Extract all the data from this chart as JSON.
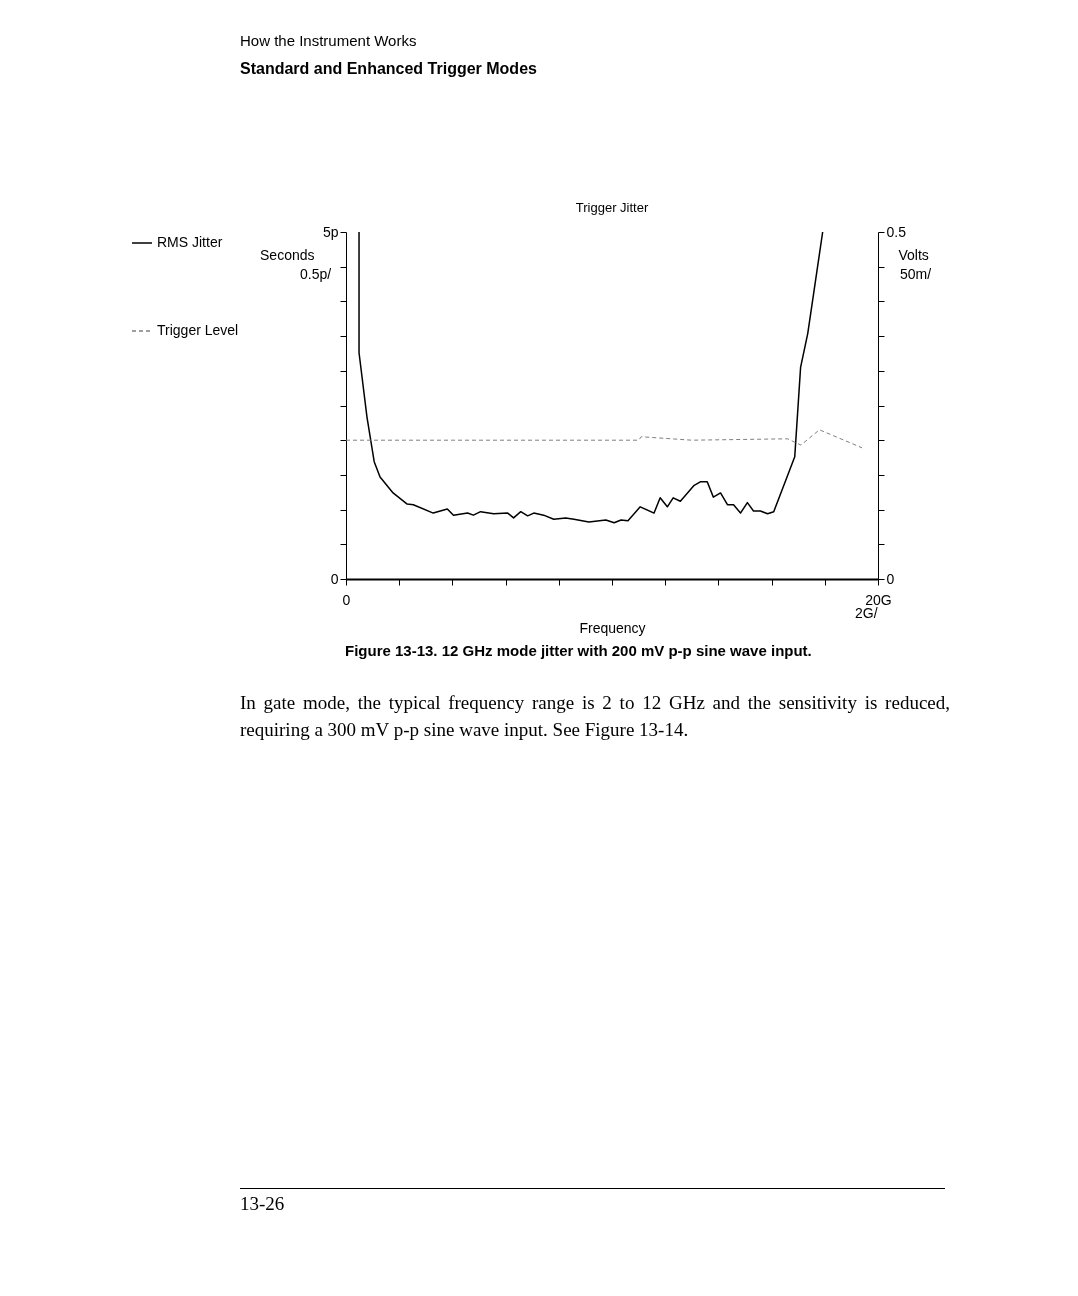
{
  "chart_data": {
    "type": "line",
    "title": "Trigger Jitter",
    "xlabel": "Frequency",
    "ylabel": "Seconds",
    "y2label": "Volts",
    "xlim": [
      0,
      20
    ],
    "xticks": [
      {
        "value": 0,
        "label": "0"
      },
      {
        "value": 2,
        "label": null
      },
      {
        "value": 4,
        "label": null
      },
      {
        "value": 6,
        "label": null
      },
      {
        "value": 8,
        "label": null
      },
      {
        "value": 10,
        "label": null
      },
      {
        "value": 12,
        "label": null
      },
      {
        "value": 14,
        "label": null
      },
      {
        "value": 16,
        "label": null
      },
      {
        "value": 18,
        "label": null
      },
      {
        "value": 20,
        "label": "20G"
      }
    ],
    "ylim": [
      0,
      5
    ],
    "yticks": [
      {
        "value": 0,
        "label": "0"
      },
      {
        "value": 0.5,
        "label": null
      },
      {
        "value": 1,
        "label": null
      },
      {
        "value": 1.5,
        "label": null
      },
      {
        "value": 2,
        "label": null
      },
      {
        "value": 2.5,
        "label": null
      },
      {
        "value": 3,
        "label": null
      },
      {
        "value": 3.5,
        "label": null
      },
      {
        "value": 4,
        "label": null
      },
      {
        "value": 4.5,
        "label": null
      },
      {
        "value": 5,
        "label": "5p"
      }
    ],
    "y2lim": [
      0,
      0.5
    ],
    "y2ticks": [
      {
        "value": 0,
        "label": "0"
      },
      {
        "value": 0.05,
        "label": null
      },
      {
        "value": 0.1,
        "label": null
      },
      {
        "value": 0.15,
        "label": null
      },
      {
        "value": 0.2,
        "label": null
      },
      {
        "value": 0.25,
        "label": null
      },
      {
        "value": 0.3,
        "label": null
      },
      {
        "value": 0.35,
        "label": null
      },
      {
        "value": 0.4,
        "label": null
      },
      {
        "value": 0.45,
        "label": null
      },
      {
        "value": 0.5,
        "label": "0.5"
      }
    ],
    "legend": "left",
    "grid": false,
    "series": [
      {
        "name": "RMS Jitter",
        "color": "#000000",
        "line_style": "solid",
        "x": [
          0.49,
          0.49,
          0.79,
          1.06,
          1.28,
          1.77,
          2.3,
          2.53,
          3.28,
          3.81,
          4.04,
          4.57,
          4.79,
          5.06,
          5.55,
          6.08,
          6.3,
          6.57,
          6.83,
          7.06,
          7.43,
          7.81,
          8.26,
          8.57,
          9.13,
          9.77,
          10.08,
          10.34,
          10.6,
          11.06,
          11.58,
          11.81,
          12.08,
          12.3,
          12.57,
          13.09,
          13.32,
          13.58,
          13.81,
          14.08,
          14.34,
          14.57,
          14.83,
          15.09,
          15.32,
          15.58,
          15.85,
          16.08,
          16.49,
          16.87,
          17.09,
          17.36,
          17.92
        ],
        "values": [
          5,
          3.26,
          2.33,
          1.69,
          1.47,
          1.24,
          1.08,
          1.07,
          0.95,
          1.01,
          0.92,
          0.95,
          0.92,
          0.97,
          0.94,
          0.95,
          0.88,
          0.97,
          0.91,
          0.95,
          0.92,
          0.86,
          0.88,
          0.86,
          0.82,
          0.85,
          0.81,
          0.85,
          0.84,
          1.04,
          0.95,
          1.17,
          1.04,
          1.17,
          1.12,
          1.35,
          1.4,
          1.4,
          1.18,
          1.24,
          1.07,
          1.07,
          0.95,
          1.1,
          0.98,
          0.98,
          0.94,
          0.97,
          1.38,
          1.76,
          3.05,
          3.54,
          5
        ]
      },
      {
        "name": "Trigger Level",
        "color": "#808080",
        "line_style": "dashed",
        "axis": "y2",
        "x": [
          0,
          4,
          11,
          11.1,
          13,
          16.6,
          17.1,
          17.8,
          19.4
        ],
        "values": [
          0.2,
          0.2,
          0.2,
          0.205,
          0.2,
          0.202,
          0.193,
          0.215,
          0.189
        ]
      }
    ],
    "annotations": [
      "How the Instrument Works",
      "Standard and Enhanced Trigger Modes",
      "0.5p/",
      "50m/",
      "2G/",
      "Figure 13-13. 12 GHz mode jitter with 200 mV p-p sine wave input.",
      "In gate mode, the typical frequency range is 2 to 12 GHz and the sensitivity is reduced, requiring a 300 mV p-p sine wave input.  See Figure 13-14.",
      "13-26"
    ]
  }
}
